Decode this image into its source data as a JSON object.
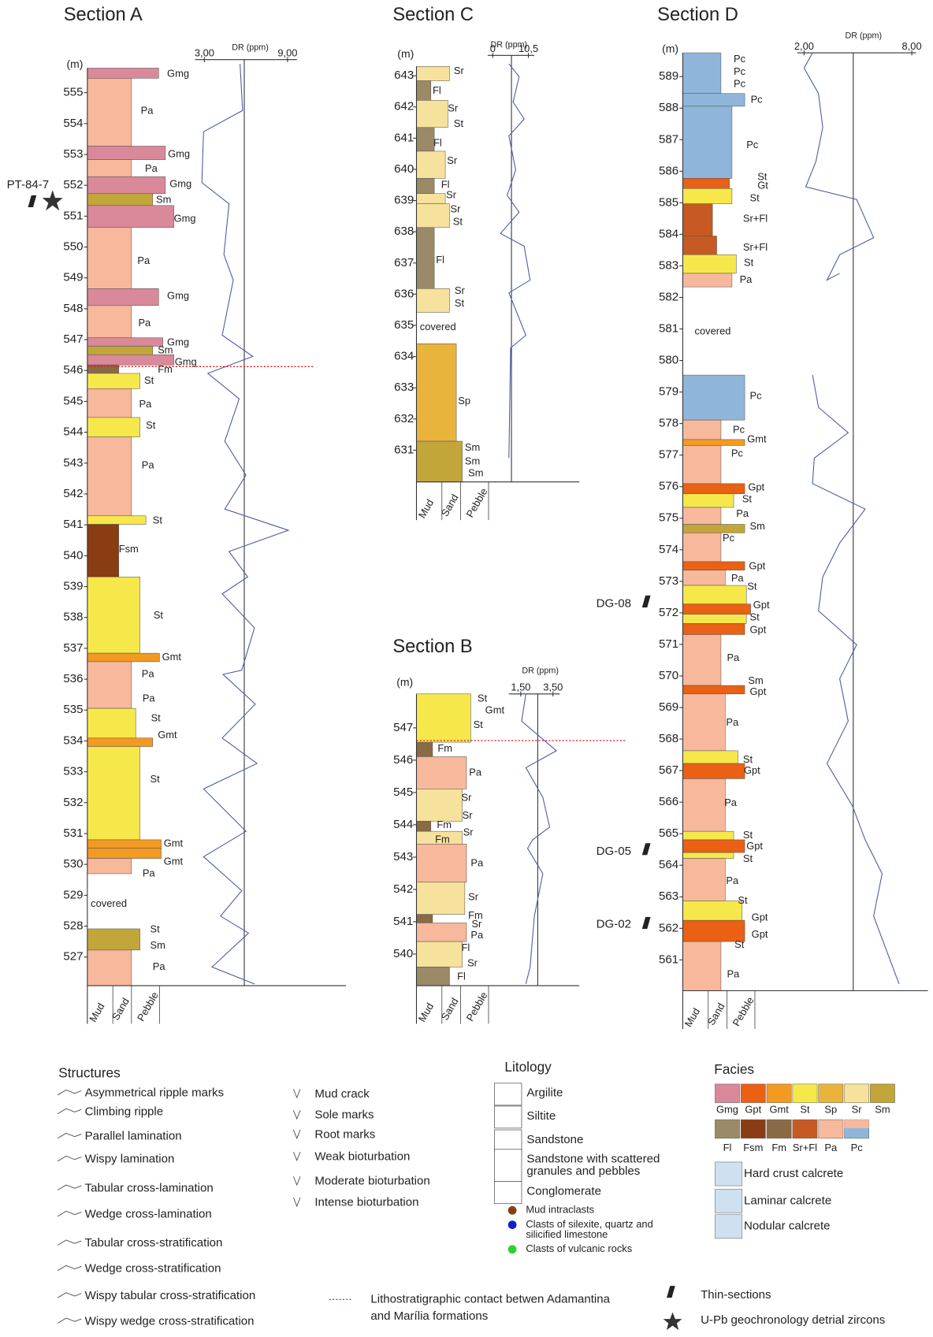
{
  "sections": [
    {
      "title": "Section A",
      "unit": "(m)",
      "dr_label": "DR (ppm)",
      "dr_ticks": [
        "3,00",
        "9,00"
      ],
      "grain_size": [
        "Mud",
        "Sand",
        "Pebble"
      ],
      "depths": [
        555,
        554,
        553,
        552,
        551,
        550,
        549,
        548,
        547,
        546,
        545,
        544,
        543,
        542,
        541,
        540,
        539,
        538,
        537,
        536,
        535,
        534,
        533,
        532,
        531,
        530,
        529,
        528,
        527
      ],
      "beds": [
        "Gmg",
        "Pa",
        "Gmg",
        "Pa",
        "Gmg",
        "Sm",
        "Gmg",
        "Pa",
        "Gmg",
        "Pa",
        "Gmg",
        "Sm",
        "Gmg",
        "Fm",
        "St",
        "Pa",
        "St",
        "Pa",
        "St",
        "Fsm",
        "St",
        "Gmt",
        "Pa",
        "Pa",
        "St",
        "Gmt",
        "St",
        "Gmt",
        "Gmt",
        "Pa",
        "covered",
        "St",
        "Sm",
        "Pa"
      ]
    },
    {
      "title": "Section C",
      "unit": "(m)",
      "dr_label": "DR (ppm)",
      "dr_ticks": [
        "0",
        "10,5"
      ],
      "grain_size": [
        "Mud",
        "Sand",
        "Pebble"
      ],
      "depths": [
        643,
        642,
        641,
        640,
        639,
        638,
        637,
        636,
        635,
        634,
        633,
        632,
        631
      ],
      "beds": [
        "Sr",
        "Fl",
        "Sr",
        "St",
        "Fl",
        "Sr",
        "Fl",
        "Sr",
        "Sr",
        "St",
        "Fl",
        "Sr",
        "St",
        "covered",
        "Sp",
        "Sm",
        "Sm",
        "Sm"
      ]
    },
    {
      "title": "Section B",
      "unit": "(m)",
      "dr_label": "DR (ppm)",
      "dr_ticks": [
        "1,50",
        "3,50"
      ],
      "grain_size": [
        "Mud",
        "Sand",
        "Pebble"
      ],
      "depths": [
        547,
        546,
        545,
        544,
        543,
        542,
        541,
        540
      ],
      "beds": [
        "St",
        "Gmt",
        "St",
        "Fm",
        "Pa",
        "Sr",
        "Sr",
        "Fm",
        "Sr",
        "Fm",
        "Pa",
        "Sr",
        "Fm",
        "Sr",
        "Pa",
        "Fl",
        "Sr",
        "Fl"
      ]
    },
    {
      "title": "Section D",
      "unit": "(m)",
      "dr_label": "DR (ppm)",
      "dr_ticks": [
        "2,00",
        "8,00"
      ],
      "grain_size": [
        "Mud",
        "Sand",
        "Pebble"
      ],
      "depths": [
        589,
        588,
        587,
        586,
        585,
        584,
        583,
        582,
        581,
        580,
        579,
        578,
        577,
        576,
        575,
        574,
        573,
        572,
        571,
        570,
        569,
        568,
        567,
        566,
        565,
        564,
        563,
        562,
        561
      ],
      "beds": [
        "Pc",
        "Pc",
        "Pc",
        "Pc",
        "Pc",
        "St",
        "Gt",
        "St",
        "Sr+Fl",
        "Sr+Fl",
        "St",
        "Pa",
        "covered",
        "Pc",
        "Pc",
        "Gmt",
        "Pc",
        "Gpt",
        "St",
        "Pa",
        "Sm",
        "Pc",
        "Gpt",
        "Pa",
        "St",
        "Gpt",
        "St",
        "Gpt",
        "Pa",
        "Sm",
        "Gpt",
        "Pa",
        "St",
        "Gpt",
        "Pa",
        "St",
        "Gpt",
        "St",
        "Pa",
        "St",
        "Gpt",
        "Gpt",
        "St",
        "Pa"
      ]
    }
  ],
  "samples": [
    "PT-84-7",
    "DG-08",
    "DG-05",
    "DG-02"
  ],
  "legend": {
    "structures": {
      "title": "Structures",
      "items": [
        "Asymmetrical ripple marks",
        "Climbing ripple",
        "Parallel lamination",
        "Wispy lamination",
        "Tabular cross-lamination",
        "Wedge cross-lamination",
        "Tabular cross-stratification",
        "Wedge cross-stratification",
        "Wispy tabular cross-stratification",
        "Wispy wedge cross-stratification",
        "Mud crack",
        "Sole marks",
        "Root marks",
        "Weak bioturbation",
        "Moderate bioturbation",
        "Intense bioturbation"
      ]
    },
    "litology": {
      "title": "Litology",
      "items": [
        [
          "Argilite"
        ],
        [
          "Siltite"
        ],
        [
          "Sandstone"
        ],
        [
          "Sandstone with scattered",
          "granules and pebbles"
        ],
        [
          "Conglomerate"
        ]
      ],
      "clasts": [
        [
          "Mud intraclasts"
        ],
        [
          "Clasts of silexite, quartz and",
          "silicified limestone"
        ],
        [
          "Clasts of vulcanic rocks"
        ]
      ]
    },
    "facies": {
      "title": "Facies",
      "codes": [
        "Gmg",
        "Gpt",
        "Gmt",
        "St",
        "Sp",
        "Sr",
        "Sm",
        "Fl",
        "Fsm",
        "Fm",
        "Sr+Fl",
        "Pa",
        "Pc"
      ]
    },
    "calcretes": [
      "Hard crust calcrete",
      "Laminar calcrete",
      "Nodular calcrete"
    ],
    "contact": [
      "Lithostratigraphic contact betwen Adamantina",
      "and Marília formations"
    ],
    "thin_sections": "Thin-sections",
    "zircons": "U-Pb geochronology detrial zircons"
  }
}
